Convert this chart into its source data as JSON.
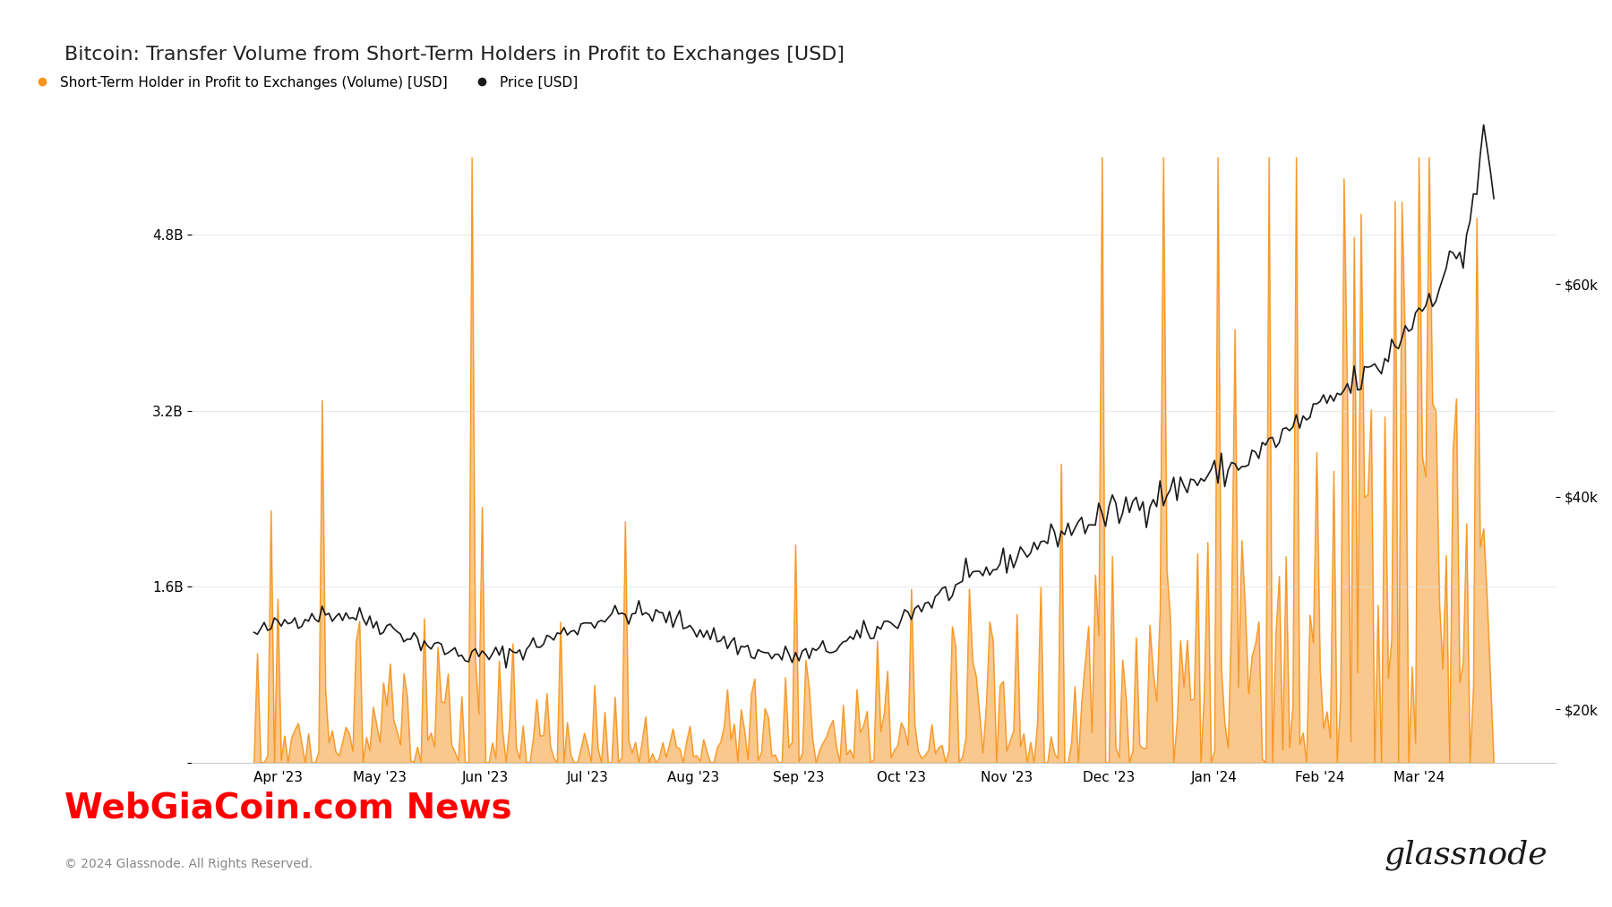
{
  "title": "Bitcoin: Transfer Volume from Short-Term Holders in Profit to Exchanges [USD]",
  "legend_labels": [
    "Short-Term Holder in Profit to Exchanges (Volume) [USD]",
    "Price [USD]"
  ],
  "legend_colors": [
    "#f7931a",
    "#1a1a1a"
  ],
  "left_ylabel_ticks": [
    "0",
    "1.6B",
    "3.2B",
    "4.8B"
  ],
  "left_ylim": [
    0,
    5800000000
  ],
  "right_ylabel_ticks": [
    "$20k",
    "$40k",
    "$60k"
  ],
  "right_ylim": [
    15000,
    75000
  ],
  "xlabel_ticks": [
    "Apr '23",
    "May '23",
    "Jun '23",
    "Jul '23",
    "Aug '23",
    "Sep '23",
    "Oct '23",
    "Nov '23",
    "Dec '23",
    "Jan '24",
    "Feb '24",
    "Mar '24"
  ],
  "background_color": "#ffffff",
  "plot_bg_color": "#ffffff",
  "spine_color": "#cccccc",
  "watermark_text": "WebGiaCoin.com News",
  "watermark_color": "#ff0000",
  "copyright_text": "© 2024 Glassnode. All Rights Reserved.",
  "brand_text": "glassnode",
  "orange_color": "#f7931a",
  "price_color": "#1a1a1a",
  "title_fontsize": 16,
  "label_fontsize": 11,
  "tick_fontsize": 11
}
